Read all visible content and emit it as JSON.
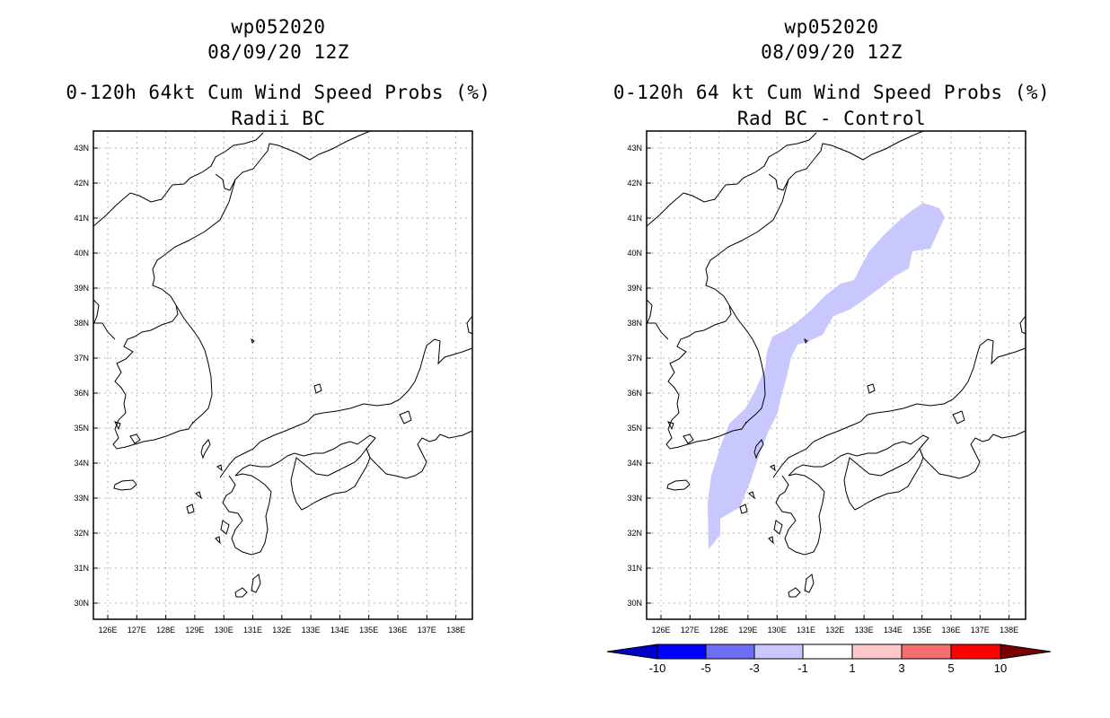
{
  "left_panel": {
    "storm_id": "wp052020",
    "datetime": "08/09/20 12Z",
    "product": "0-120h 64kt Cum Wind Speed Probs (%)",
    "subtitle": "Radii BC"
  },
  "right_panel": {
    "storm_id": "wp052020",
    "datetime": "08/09/20 12Z",
    "product": "0-120h 64 kt Cum Wind Speed Probs (%)",
    "subtitle": "Rad BC - Control"
  },
  "map_axes": {
    "lon_labels": [
      "126E",
      "127E",
      "128E",
      "129E",
      "130E",
      "131E",
      "132E",
      "133E",
      "134E",
      "135E",
      "136E",
      "137E",
      "138E"
    ],
    "lat_labels": [
      "43N",
      "42N",
      "41N",
      "40N",
      "39N",
      "38N",
      "37N",
      "36N",
      "35N",
      "34N",
      "33N",
      "32N",
      "31N",
      "30N"
    ]
  },
  "colorbar": {
    "labels": [
      "-10",
      "-5",
      "-3",
      "-1",
      "1",
      "3",
      "5",
      "10"
    ],
    "colors": [
      "#0000c8",
      "#0000ff",
      "#6e6ef5",
      "#c8c8ff",
      "#ffffff",
      "#ffc8c8",
      "#f56e6e",
      "#ff0000",
      "#780000"
    ]
  },
  "fill_color": "#c8c8ff"
}
